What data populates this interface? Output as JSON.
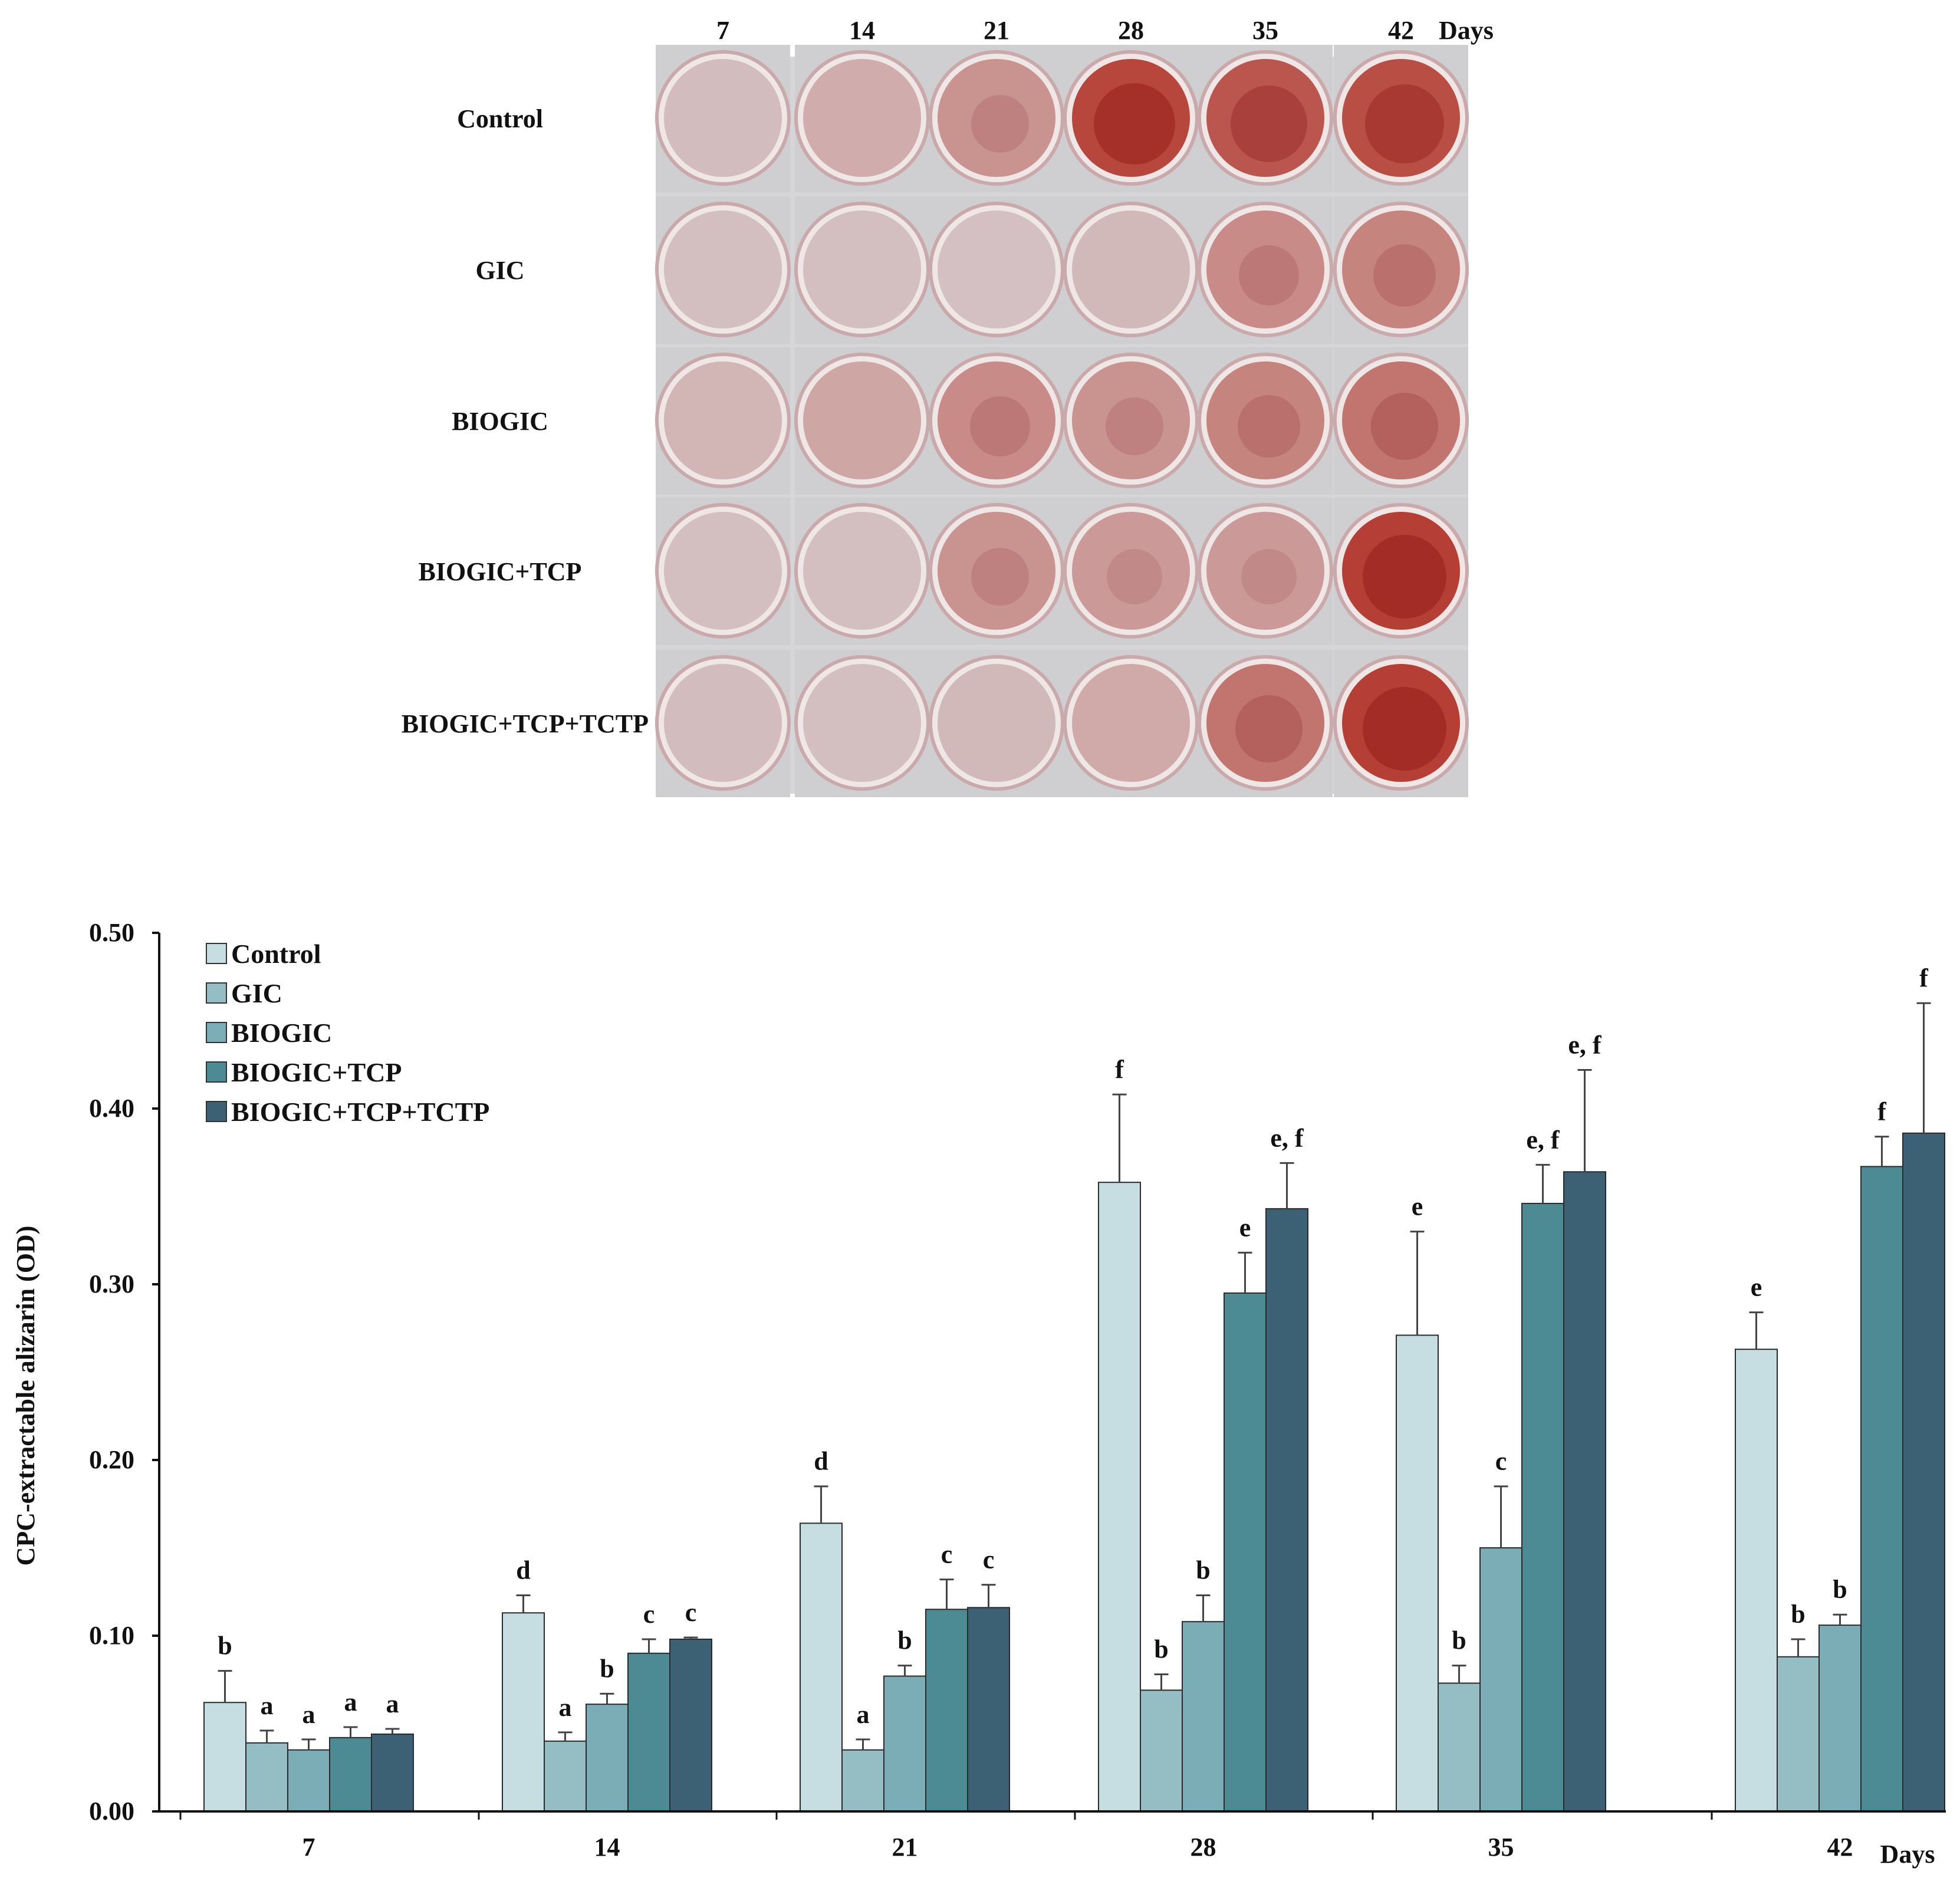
{
  "panel_a": {
    "days_header": [
      "7",
      "14",
      "21",
      "28",
      "35",
      "42"
    ],
    "days_unit": "Days",
    "groups": [
      "Control",
      "GIC",
      "BIOGIC",
      "BIOGIC+TCP",
      "BIOGIC+TCP+TCTP"
    ],
    "stain_intensity": [
      [
        0.08,
        0.18,
        0.35,
        0.85,
        0.75,
        0.8
      ],
      [
        0.06,
        0.06,
        0.05,
        0.1,
        0.4,
        0.45
      ],
      [
        0.12,
        0.22,
        0.4,
        0.35,
        0.45,
        0.55
      ],
      [
        0.06,
        0.06,
        0.35,
        0.3,
        0.3,
        0.9
      ],
      [
        0.08,
        0.06,
        0.1,
        0.2,
        0.55,
        0.9
      ]
    ]
  },
  "chart_data": {
    "type": "bar",
    "title": "",
    "xlabel": "Days",
    "ylabel": "CPC-extractable alizarin (OD)",
    "ylim": [
      0,
      0.5
    ],
    "yticks": [
      "0.00",
      "0.10",
      "0.20",
      "0.30",
      "0.40",
      "0.50"
    ],
    "categories": [
      "7",
      "14",
      "21",
      "28",
      "35",
      "42"
    ],
    "legend_position": "top-left",
    "series": [
      {
        "name": "Control",
        "color": "#c6dde1",
        "values": [
          0.062,
          0.113,
          0.164,
          0.358,
          0.271,
          0.263
        ],
        "errors": [
          0.018,
          0.01,
          0.021,
          0.05,
          0.059,
          0.021
        ],
        "letters": [
          "b",
          "d",
          "d",
          "f",
          "e",
          "e"
        ]
      },
      {
        "name": "GIC",
        "color": "#94bdc4",
        "values": [
          0.039,
          0.04,
          0.035,
          0.069,
          0.073,
          0.088
        ],
        "errors": [
          0.007,
          0.005,
          0.006,
          0.009,
          0.01,
          0.01
        ],
        "letters": [
          "a",
          "a",
          "a",
          "b",
          "b",
          "b"
        ]
      },
      {
        "name": "BIOGIC",
        "color": "#7aadb5",
        "values": [
          0.035,
          0.061,
          0.077,
          0.108,
          0.15,
          0.106
        ],
        "errors": [
          0.006,
          0.006,
          0.006,
          0.015,
          0.035,
          0.006
        ],
        "letters": [
          "a",
          "b",
          "b",
          "b",
          "c",
          "b"
        ]
      },
      {
        "name": "BIOGIC+TCP",
        "color": "#4d8b94",
        "values": [
          0.042,
          0.09,
          0.115,
          0.295,
          0.346,
          0.367
        ],
        "errors": [
          0.006,
          0.008,
          0.017,
          0.023,
          0.022,
          0.017
        ],
        "letters": [
          "a",
          "c",
          "c",
          "e",
          "e, f",
          "f"
        ]
      },
      {
        "name": "BIOGIC+TCP+TCTP",
        "color": "#3c6174",
        "values": [
          0.044,
          0.098,
          0.116,
          0.343,
          0.364,
          0.386
        ],
        "errors": [
          0.003,
          0.001,
          0.013,
          0.026,
          0.058,
          0.074
        ],
        "letters": [
          "a",
          "c",
          "c",
          "e, f",
          "e, f",
          "f"
        ]
      }
    ]
  }
}
